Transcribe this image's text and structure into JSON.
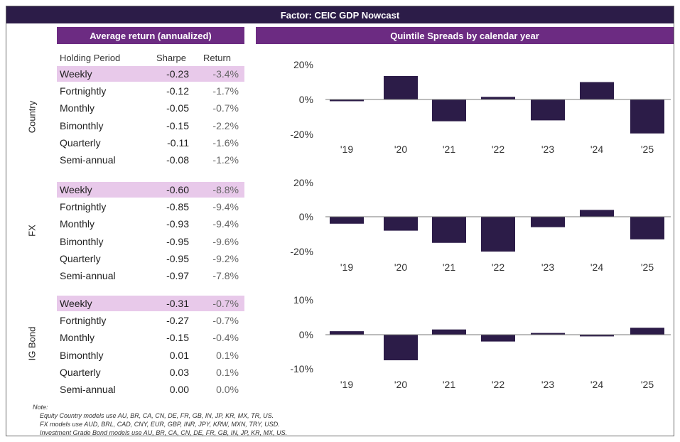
{
  "title": "Factor: CEIC GDP Nowcast",
  "table_title": "Average return (annualized)",
  "chart_title": "Quintile Spreads by calendar year",
  "headers": {
    "holding_period": "Holding Period",
    "sharpe": "Sharpe",
    "return": "Return"
  },
  "sections": [
    {
      "label": "Country",
      "rows": [
        {
          "period": "Weekly",
          "sharpe": "-0.23",
          "ret": "-3.4%"
        },
        {
          "period": "Fortnightly",
          "sharpe": "-0.12",
          "ret": "-1.7%"
        },
        {
          "period": "Monthly",
          "sharpe": "-0.05",
          "ret": "-0.7%"
        },
        {
          "period": "Bimonthly",
          "sharpe": "-0.15",
          "ret": "-2.2%"
        },
        {
          "period": "Quarterly",
          "sharpe": "-0.11",
          "ret": "-1.6%"
        },
        {
          "period": "Semi-annual",
          "sharpe": "-0.08",
          "ret": "-1.2%"
        }
      ]
    },
    {
      "label": "FX",
      "rows": [
        {
          "period": "Weekly",
          "sharpe": "-0.60",
          "ret": "-8.8%"
        },
        {
          "period": "Fortnightly",
          "sharpe": "-0.85",
          "ret": "-9.4%"
        },
        {
          "period": "Monthly",
          "sharpe": "-0.93",
          "ret": "-9.4%"
        },
        {
          "period": "Bimonthly",
          "sharpe": "-0.95",
          "ret": "-9.6%"
        },
        {
          "period": "Quarterly",
          "sharpe": "-0.95",
          "ret": "-9.2%"
        },
        {
          "period": "Semi-annual",
          "sharpe": "-0.97",
          "ret": "-7.8%"
        }
      ]
    },
    {
      "label": "IG Bond",
      "rows": [
        {
          "period": "Weekly",
          "sharpe": "-0.31",
          "ret": "-0.7%"
        },
        {
          "period": "Fortnightly",
          "sharpe": "-0.27",
          "ret": "-0.7%"
        },
        {
          "period": "Monthly",
          "sharpe": "-0.15",
          "ret": "-0.4%"
        },
        {
          "period": "Bimonthly",
          "sharpe": "0.01",
          "ret": "0.1%"
        },
        {
          "period": "Quarterly",
          "sharpe": "0.03",
          "ret": "0.1%"
        },
        {
          "period": "Semi-annual",
          "sharpe": "0.00",
          "ret": "0.0%"
        }
      ]
    }
  ],
  "colors": {
    "bar": "#2c1c48",
    "header": "#2c1c48",
    "subheader": "#6c2b82",
    "highlight": "#e8c9ea"
  },
  "chart_data": [
    {
      "type": "bar",
      "section": "Country",
      "categories": [
        "'19",
        "'20",
        "'21",
        "'22",
        "'23",
        "'24",
        "'25"
      ],
      "values": [
        -1,
        13.5,
        -12.5,
        1.5,
        -12,
        10,
        -19.5
      ],
      "ylim": [
        -20,
        20
      ],
      "yticks": [
        20,
        0,
        -20
      ],
      "tick_labels": [
        "20%",
        "0%",
        "-20%"
      ]
    },
    {
      "type": "bar",
      "section": "FX",
      "categories": [
        "'19",
        "'20",
        "'21",
        "'22",
        "'23",
        "'24",
        "'25"
      ],
      "values": [
        -4,
        -8,
        -15,
        -20,
        -6,
        4,
        -13
      ],
      "ylim": [
        -20,
        20
      ],
      "yticks": [
        20,
        0,
        -20
      ],
      "tick_labels": [
        "20%",
        "0%",
        "-20%"
      ]
    },
    {
      "type": "bar",
      "section": "IG Bond",
      "categories": [
        "'19",
        "'20",
        "'21",
        "'22",
        "'23",
        "'24",
        "'25"
      ],
      "values": [
        1,
        -7.5,
        1.5,
        -2,
        0.5,
        -0.5,
        2
      ],
      "ylim": [
        -10,
        10
      ],
      "yticks": [
        10,
        0,
        -10
      ],
      "tick_labels": [
        "10%",
        "0%",
        "-10%"
      ]
    }
  ],
  "notes": {
    "label": "Note:",
    "lines": [
      "Equity Country models use AU, BR, CA, CN, DE, FR, GB, IN, JP, KR, MX, TR, US.",
      "FX models use AUD, BRL, CAD, CNY, EUR, GBP, INR, JPY, KRW, MXN, TRY, USD.",
      "Investment Grade Bond models use AU, BR, CA, CN, DE, FR, GB, IN, JP, KR, MX, US."
    ]
  }
}
